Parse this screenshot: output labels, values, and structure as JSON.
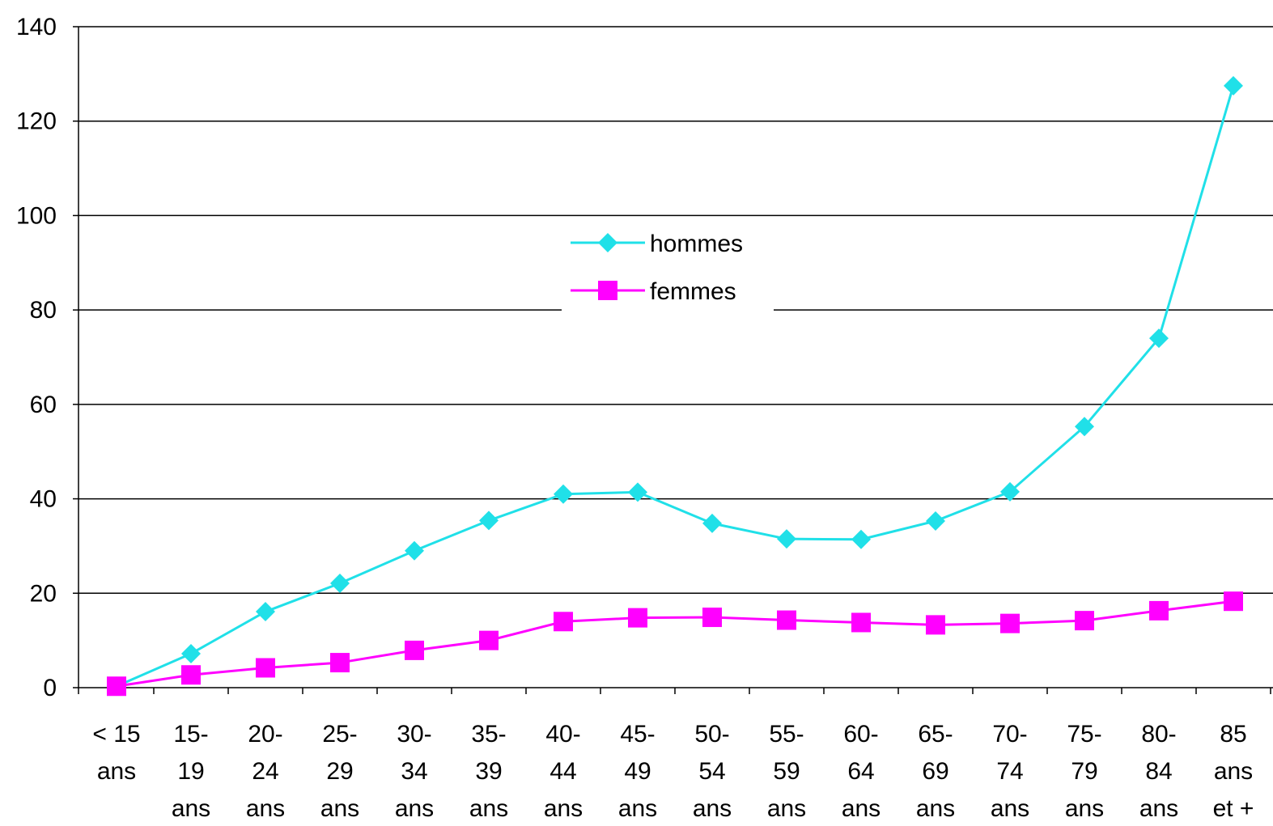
{
  "chart_data": {
    "type": "line",
    "title": "",
    "xlabel": "",
    "ylabel": "",
    "ylim": [
      0,
      140
    ],
    "yticks": [
      0,
      20,
      40,
      60,
      80,
      100,
      120,
      140
    ],
    "grid": "horizontal",
    "legend": "center",
    "categories": [
      [
        "< 15",
        "ans"
      ],
      [
        "15-",
        "19",
        "ans"
      ],
      [
        "20-",
        "24",
        "ans"
      ],
      [
        "25-",
        "29",
        "ans"
      ],
      [
        "30-",
        "34",
        "ans"
      ],
      [
        "35-",
        "39",
        "ans"
      ],
      [
        "40-",
        "44",
        "ans"
      ],
      [
        "45-",
        "49",
        "ans"
      ],
      [
        "50-",
        "54",
        "ans"
      ],
      [
        "55-",
        "59",
        "ans"
      ],
      [
        "60-",
        "64",
        "ans"
      ],
      [
        "65-",
        "69",
        "ans"
      ],
      [
        "70-",
        "74",
        "ans"
      ],
      [
        "75-",
        "79",
        "ans"
      ],
      [
        "80-",
        "84",
        "ans"
      ],
      [
        "85",
        "ans",
        "et +"
      ]
    ],
    "series": [
      {
        "name": "hommes",
        "color": "#20e0e8",
        "marker": "diamond",
        "values": [
          0.3,
          7.2,
          16.1,
          22.1,
          29.0,
          35.4,
          41.0,
          41.4,
          34.8,
          31.5,
          31.4,
          35.3,
          41.5,
          55.3,
          74.0,
          127.5
        ]
      },
      {
        "name": "femmes",
        "color": "#ff00ff",
        "marker": "square",
        "values": [
          0.3,
          2.7,
          4.2,
          5.3,
          7.9,
          10.0,
          14.0,
          14.8,
          14.9,
          14.3,
          13.8,
          13.3,
          13.6,
          14.2,
          16.3,
          18.3
        ]
      }
    ]
  }
}
